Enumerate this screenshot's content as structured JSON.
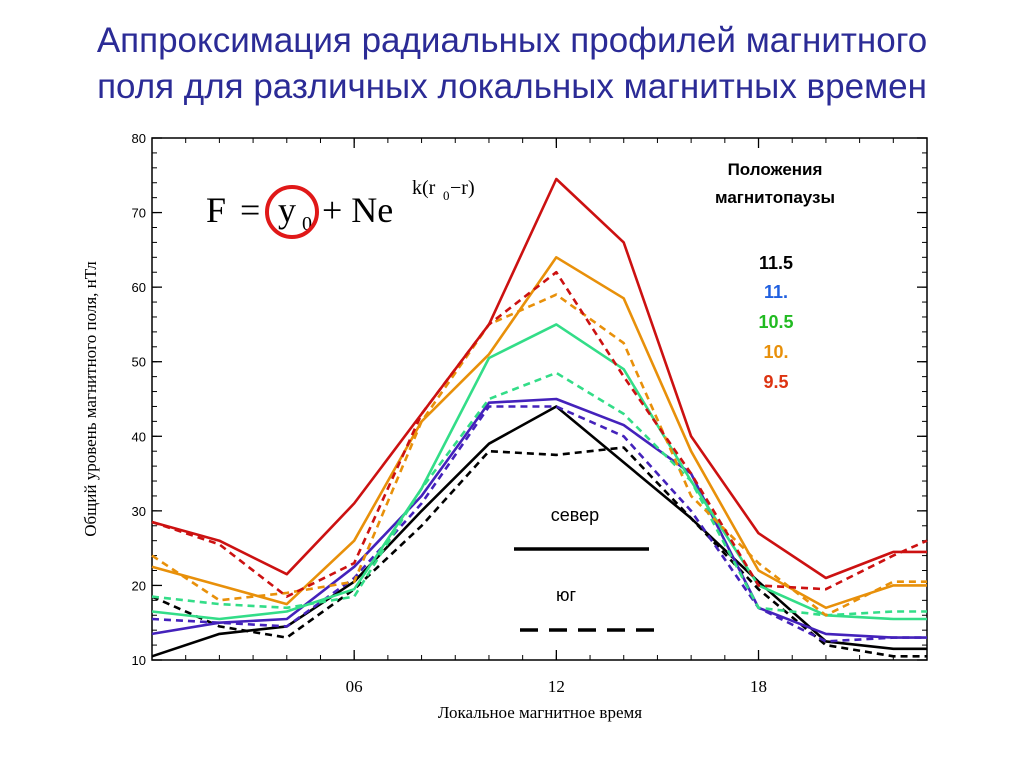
{
  "slide": {
    "title_line1": "Аппроксимация радиальных профилей магнитного",
    "title_line2": "поля для различных локальных магнитных времен"
  },
  "formula": {
    "lhs": "F",
    "eq": "=",
    "y": "y",
    "y_sub": "0",
    "plus": "+ Ne",
    "exp_k": "k(r",
    "exp_sub": "0",
    "exp_rest": " −r)"
  },
  "colors": {
    "title": "#2b2b96",
    "c11_5": "#000000",
    "c11": "#2060e0",
    "c10_5": "#22bb22",
    "c10": "#e8900a",
    "c9_5": "#dd3311",
    "circle": "#e01818"
  },
  "legend": {
    "title_line1": "Положения",
    "title_line2": "магнитопаузы",
    "entries": [
      {
        "label": "11.5",
        "color": "#000000"
      },
      {
        "label": "11.",
        "color": "#2060e0"
      },
      {
        "label": "10.5",
        "color": "#22bb22"
      },
      {
        "label": "10.",
        "color": "#e8900a"
      },
      {
        "label": "9.5",
        "color": "#dd3311"
      }
    ]
  },
  "line_key": {
    "north_label": "север",
    "south_label": "юг"
  },
  "chart_data": {
    "type": "line",
    "xlabel": "Локальное магнитное время",
    "ylabel": "Общий уровень магнитного поля, нТл",
    "xlim": [
      0,
      23
    ],
    "ylim": [
      10,
      80
    ],
    "x_ticks": [
      6,
      12,
      18
    ],
    "x_tick_labels": [
      "06",
      "12",
      "18"
    ],
    "y_ticks": [
      10,
      20,
      30,
      40,
      50,
      60,
      70,
      80
    ],
    "grid": false,
    "series": [
      {
        "name": "11.5",
        "color": "#000000",
        "style": "solid",
        "x": [
          0,
          2,
          4,
          6,
          8,
          10,
          12,
          14,
          16,
          18,
          20,
          22,
          23
        ],
        "y": [
          10.5,
          13.5,
          14.5,
          20.5,
          30,
          39,
          44,
          36.5,
          29,
          20.5,
          12.5,
          11.5,
          11.5
        ]
      },
      {
        "name": "11.5",
        "color": "#000000",
        "style": "dashed",
        "x": [
          0,
          2,
          4,
          6,
          8,
          10,
          12,
          14,
          16,
          18,
          20,
          22,
          23
        ],
        "y": [
          18.5,
          14.5,
          13,
          19.5,
          28,
          38,
          37.5,
          38.5,
          29,
          19.5,
          12,
          10.5,
          10.5
        ]
      },
      {
        "name": "11.",
        "color": "#4422bb",
        "style": "solid",
        "x": [
          0,
          2,
          4,
          6,
          8,
          10,
          12,
          14,
          16,
          18,
          20,
          22,
          23
        ],
        "y": [
          13.5,
          15,
          15.5,
          22.5,
          32,
          44.5,
          45,
          41.5,
          35,
          17,
          13.5,
          13,
          13
        ]
      },
      {
        "name": "11.",
        "color": "#4422bb",
        "style": "dashed",
        "x": [
          0,
          2,
          4,
          6,
          8,
          10,
          12,
          14,
          16,
          18,
          20,
          22,
          23
        ],
        "y": [
          15.5,
          15,
          14.5,
          21,
          31,
          44,
          44,
          40,
          30,
          17,
          12.5,
          13,
          13
        ]
      },
      {
        "name": "10.5",
        "color": "#33dd88",
        "style": "solid",
        "x": [
          0,
          2,
          4,
          6,
          8,
          10,
          12,
          14,
          16,
          18,
          20,
          22,
          23
        ],
        "y": [
          16.5,
          15.5,
          16.5,
          19.5,
          33,
          50.5,
          55,
          49,
          34,
          20,
          16,
          15.5,
          15.5
        ]
      },
      {
        "name": "10.5",
        "color": "#33dd88",
        "style": "dashed",
        "x": [
          0,
          2,
          4,
          6,
          8,
          10,
          12,
          14,
          16,
          18,
          20,
          22,
          23
        ],
        "y": [
          18.5,
          17.5,
          17,
          18.5,
          33,
          45,
          48.5,
          43,
          34,
          17,
          16,
          16.5,
          16.5
        ]
      },
      {
        "name": "10.",
        "color": "#e8900a",
        "style": "solid",
        "x": [
          0,
          2,
          4,
          6,
          8,
          10,
          12,
          14,
          16,
          18,
          20,
          22,
          23
        ],
        "y": [
          22.5,
          20,
          17.5,
          26,
          42,
          51,
          64,
          58.5,
          38,
          22,
          17,
          20,
          20
        ]
      },
      {
        "name": "10.",
        "color": "#e8900a",
        "style": "dashed",
        "x": [
          0,
          2,
          4,
          6,
          8,
          10,
          12,
          14,
          16,
          18,
          20,
          22,
          23
        ],
        "y": [
          24,
          18,
          19,
          20.5,
          42,
          55,
          59,
          52.5,
          32,
          23,
          16,
          20.5,
          20.5
        ]
      },
      {
        "name": "9.5",
        "color": "#cc1111",
        "style": "solid",
        "x": [
          0,
          2,
          4,
          6,
          8,
          10,
          12,
          14,
          16,
          18,
          20,
          22,
          23
        ],
        "y": [
          28.5,
          26,
          21.5,
          31,
          43,
          55,
          74.5,
          66,
          40,
          27,
          21,
          24.5,
          24.5
        ]
      },
      {
        "name": "9.5",
        "color": "#cc1111",
        "style": "dashed",
        "x": [
          0,
          2,
          4,
          6,
          8,
          10,
          12,
          14,
          16,
          18,
          20,
          22,
          23
        ],
        "y": [
          28.5,
          25.5,
          18.5,
          23,
          43,
          55,
          62,
          48,
          35,
          20,
          19.5,
          24,
          26
        ]
      }
    ]
  }
}
